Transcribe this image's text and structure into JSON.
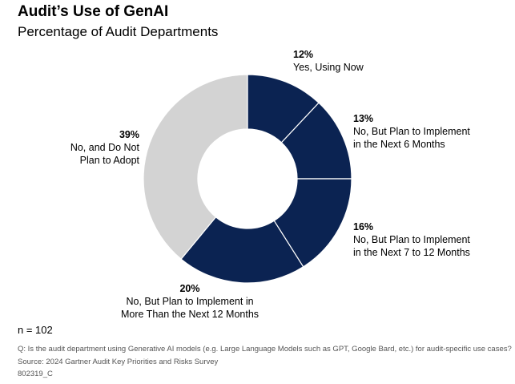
{
  "chart_data": {
    "type": "donut",
    "title": "Audit’s Use of GenAI",
    "subtitle": "Percentage of Audit Departments",
    "categories": [
      "Yes, Using Now",
      "No, But Plan to Implement\nin the Next 6 Months",
      "No, But Plan to Implement\nin the Next 7 to 12 Months",
      "No, But Plan to Implement in\nMore Than the Next 12 Months",
      "No, and Do Not\nPlan to Adopt"
    ],
    "values": [
      12,
      13,
      16,
      20,
      39
    ],
    "value_labels": [
      "12%",
      "13%",
      "16%",
      "20%",
      "39%"
    ],
    "colors": [
      "#0b2352",
      "#0b2352",
      "#0b2352",
      "#0b2352",
      "#d3d3d3"
    ],
    "sample_size": "n = 102",
    "question": "Q: Is the audit department using Generative AI models (e.g. Large Language Models such as GPT, Google Bard, etc.) for audit-specific use cases?",
    "source": "Source: 2024 Gartner Audit Key Priorities and Risks Survey",
    "code": "802319_C"
  }
}
